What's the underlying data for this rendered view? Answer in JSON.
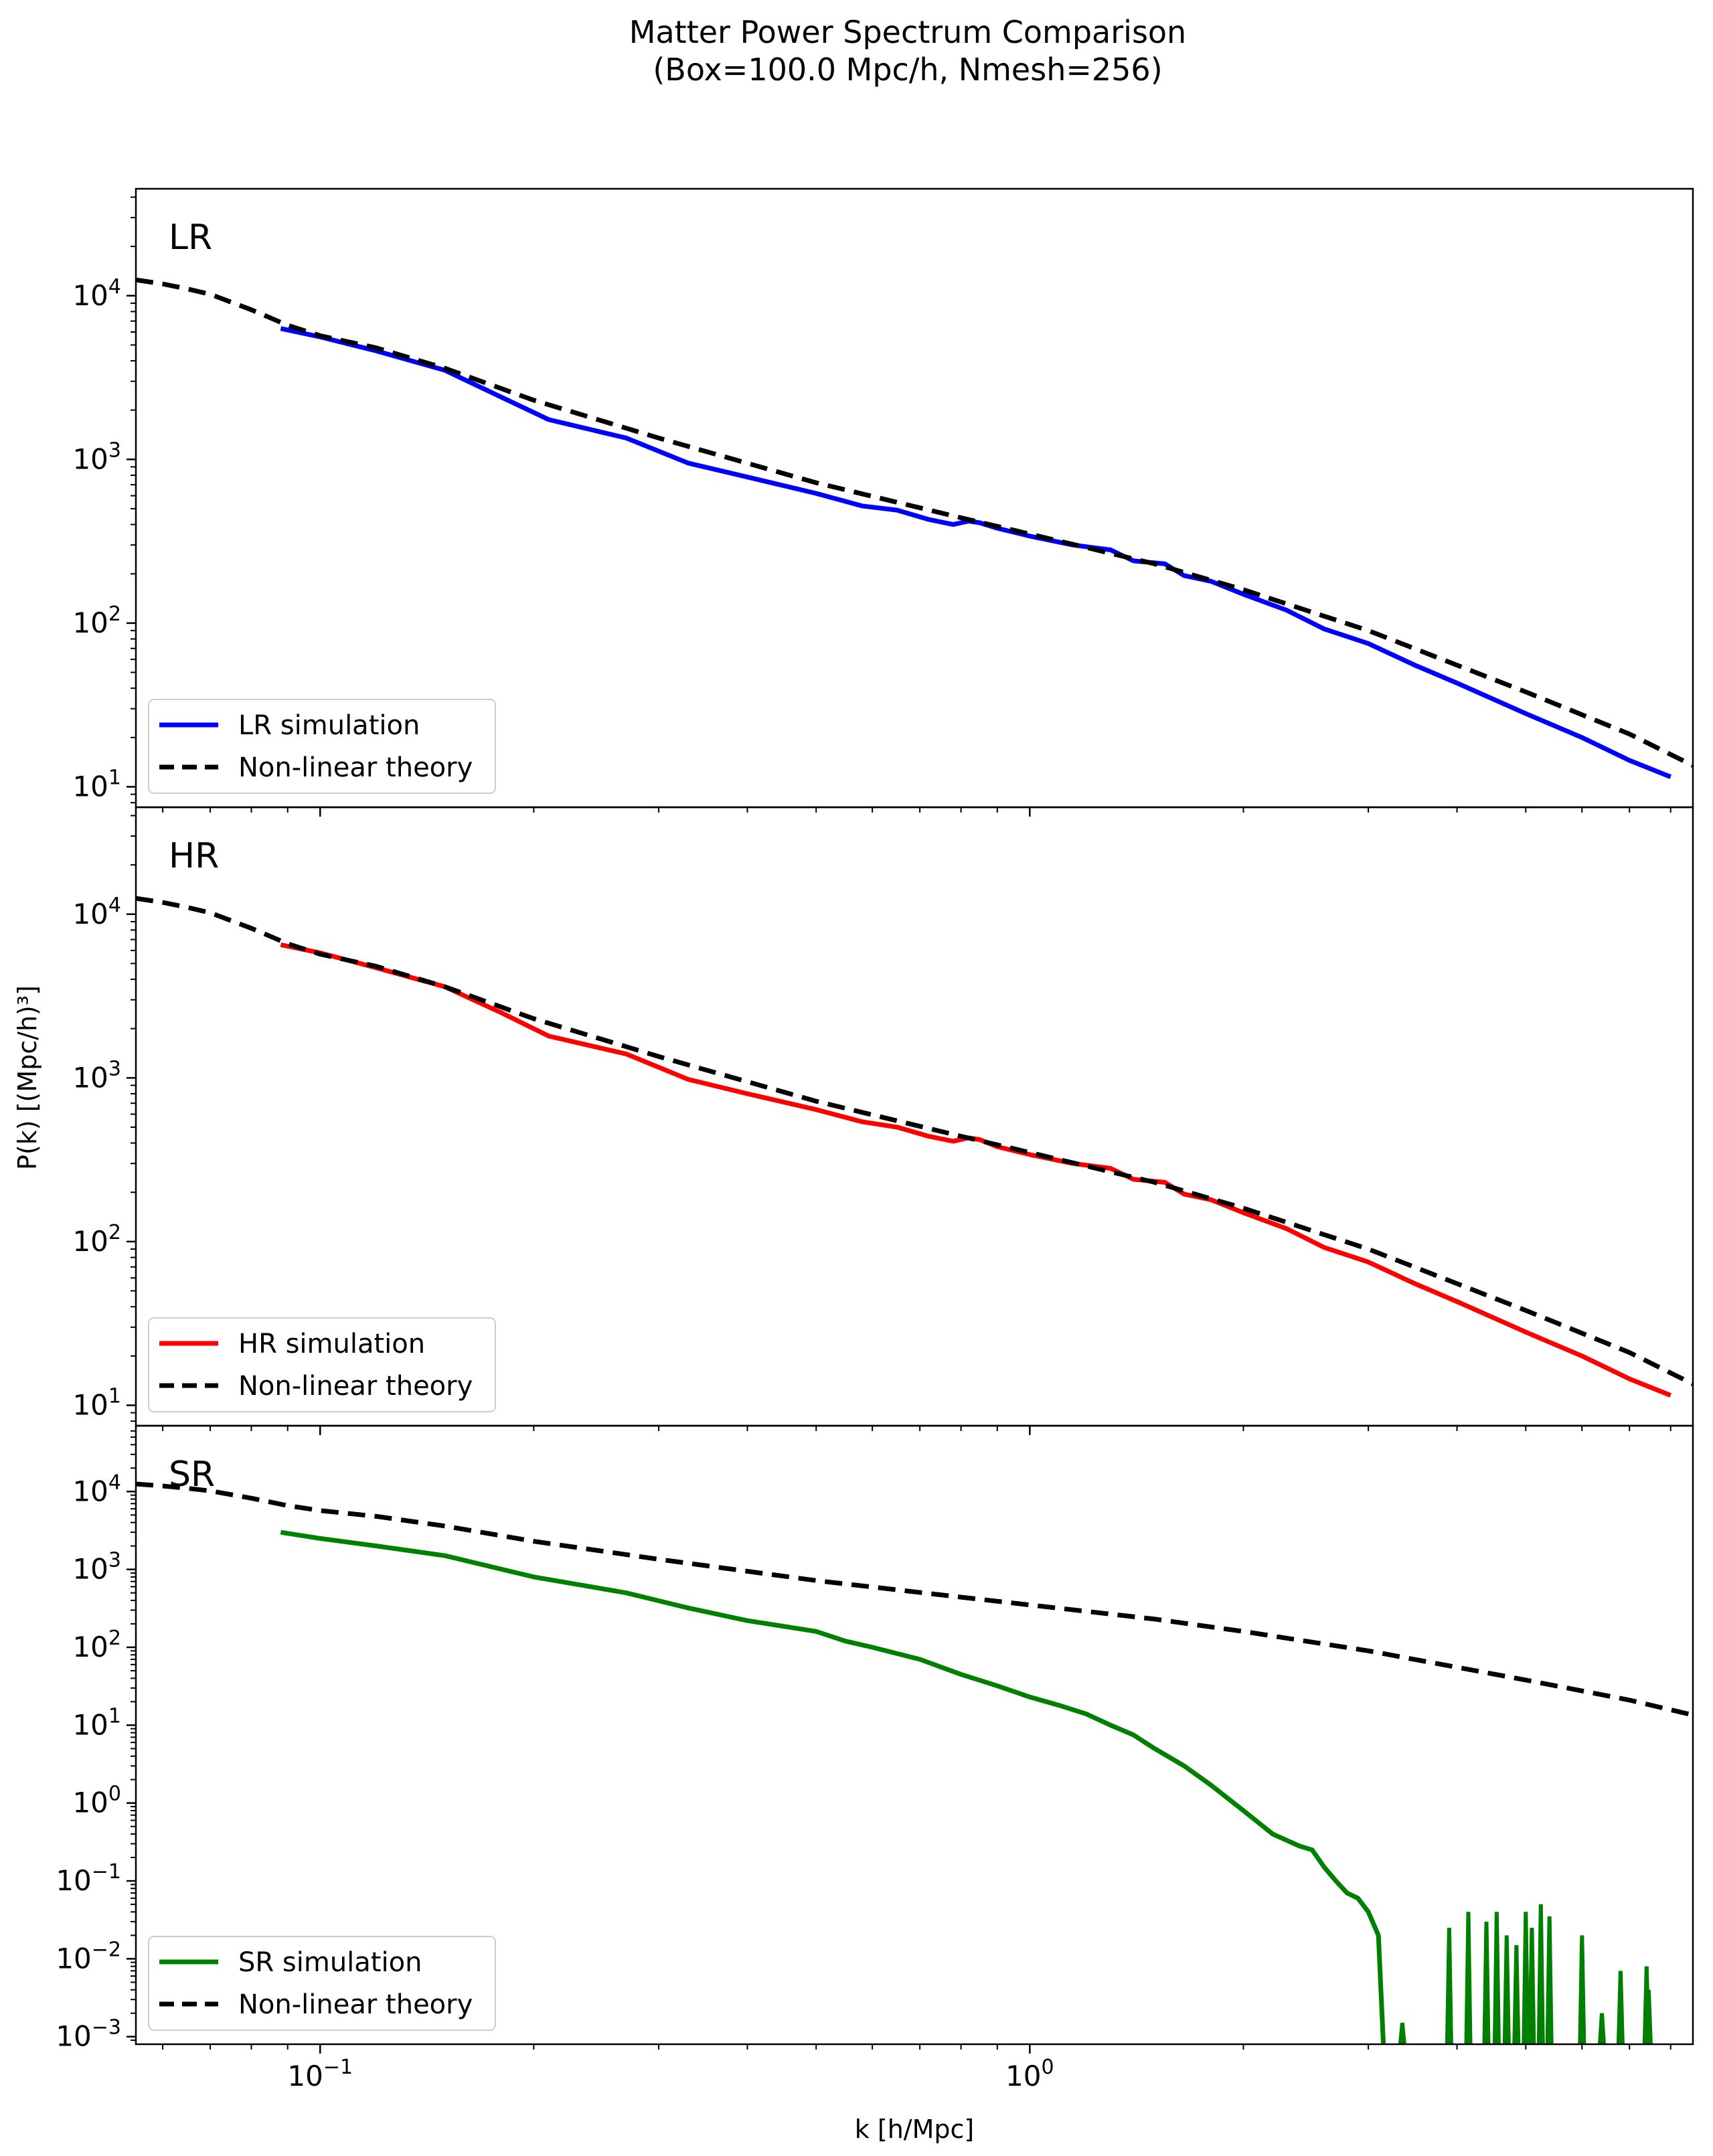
{
  "figure": {
    "title_line1": "Matter Power Spectrum Comparison",
    "title_line2": "(Box=100.0 Mpc/h, Nmesh=256)",
    "xlabel": "k [h/Mpc]",
    "ylabel": "P(k) [(Mpc/h)³]"
  },
  "chart_data": [
    {
      "type": "line",
      "panel": "LR",
      "x_scale": "log",
      "y_scale": "log",
      "xlim": [
        0.055,
        8.6
      ],
      "ylim": [
        7.5,
        45000
      ],
      "x_ticks": [
        {
          "value": 0.1,
          "base": "10",
          "exp": "−1"
        },
        {
          "value": 1,
          "base": "10",
          "exp": "0"
        }
      ],
      "y_ticks": [
        {
          "value": 10,
          "base": "10",
          "exp": "1"
        },
        {
          "value": 100,
          "base": "10",
          "exp": "2"
        },
        {
          "value": 1000,
          "base": "10",
          "exp": "3"
        },
        {
          "value": 10000,
          "base": "10",
          "exp": "4"
        }
      ],
      "legend_position": "lower-left",
      "series": [
        {
          "name": "LR simulation",
          "color": "#0000ff",
          "style": "solid",
          "x": [
            0.088,
            0.1,
            0.12,
            0.15,
            0.18,
            0.21,
            0.27,
            0.33,
            0.4,
            0.5,
            0.58,
            0.65,
            0.72,
            0.78,
            0.82,
            0.85,
            0.9,
            1.0,
            1.15,
            1.3,
            1.4,
            1.55,
            1.65,
            1.8,
            2.0,
            2.3,
            2.6,
            3.0,
            3.5,
            4.0,
            5.0,
            6.0,
            7.0,
            8.0
          ],
          "y": [
            6300,
            5600,
            4600,
            3500,
            2400,
            1750,
            1350,
            950,
            780,
            620,
            520,
            490,
            430,
            400,
            420,
            410,
            380,
            340,
            300,
            280,
            240,
            230,
            195,
            180,
            150,
            120,
            92,
            75,
            55,
            43,
            28,
            20,
            14.5,
            11.5
          ]
        },
        {
          "name": "Non-linear theory",
          "color": "#000000",
          "style": "dashed",
          "x": [
            0.055,
            0.06,
            0.065,
            0.07,
            0.08,
            0.09,
            0.1,
            0.12,
            0.15,
            0.2,
            0.3,
            0.5,
            0.8,
            1.0,
            1.5,
            2.0,
            3.0,
            5.0,
            7.0,
            8.6
          ],
          "y": [
            12500,
            11800,
            11000,
            10200,
            8200,
            6600,
            5700,
            4800,
            3600,
            2300,
            1350,
            720,
            440,
            350,
            230,
            160,
            90,
            38,
            21,
            13.5
          ]
        }
      ]
    },
    {
      "type": "line",
      "panel": "HR",
      "x_scale": "log",
      "y_scale": "log",
      "xlim": [
        0.055,
        8.6
      ],
      "ylim": [
        7.5,
        45000
      ],
      "x_ticks": [
        {
          "value": 0.1,
          "base": "10",
          "exp": "−1"
        },
        {
          "value": 1,
          "base": "10",
          "exp": "0"
        }
      ],
      "y_ticks": [
        {
          "value": 10,
          "base": "10",
          "exp": "1"
        },
        {
          "value": 100,
          "base": "10",
          "exp": "2"
        },
        {
          "value": 1000,
          "base": "10",
          "exp": "3"
        },
        {
          "value": 10000,
          "base": "10",
          "exp": "4"
        }
      ],
      "legend_position": "lower-left",
      "series": [
        {
          "name": "HR simulation",
          "color": "#ff0000",
          "style": "solid",
          "x": [
            0.088,
            0.1,
            0.12,
            0.15,
            0.18,
            0.21,
            0.27,
            0.33,
            0.4,
            0.5,
            0.58,
            0.65,
            0.72,
            0.78,
            0.82,
            0.85,
            0.9,
            1.0,
            1.15,
            1.3,
            1.4,
            1.55,
            1.65,
            1.8,
            2.0,
            2.3,
            2.6,
            3.0,
            3.5,
            4.0,
            5.0,
            6.0,
            7.0,
            8.0
          ],
          "y": [
            6500,
            5800,
            4700,
            3600,
            2500,
            1800,
            1400,
            980,
            800,
            640,
            540,
            500,
            440,
            410,
            430,
            420,
            380,
            340,
            300,
            280,
            240,
            230,
            195,
            180,
            150,
            120,
            92,
            75,
            55,
            43,
            28,
            20,
            14.5,
            11.5
          ]
        },
        {
          "name": "Non-linear theory",
          "color": "#000000",
          "style": "dashed",
          "x": [
            0.055,
            0.06,
            0.065,
            0.07,
            0.08,
            0.09,
            0.1,
            0.12,
            0.15,
            0.2,
            0.3,
            0.5,
            0.8,
            1.0,
            1.5,
            2.0,
            3.0,
            5.0,
            7.0,
            8.6
          ],
          "y": [
            12500,
            11800,
            11000,
            10200,
            8200,
            6600,
            5700,
            4800,
            3600,
            2300,
            1350,
            720,
            440,
            350,
            230,
            160,
            90,
            38,
            21,
            13.5
          ]
        }
      ]
    },
    {
      "type": "line",
      "panel": "SR",
      "x_scale": "log",
      "y_scale": "log",
      "xlim": [
        0.055,
        8.6
      ],
      "ylim": [
        0.0008,
        70000
      ],
      "x_ticks": [
        {
          "value": 0.1,
          "base": "10",
          "exp": "−1"
        },
        {
          "value": 1,
          "base": "10",
          "exp": "0"
        }
      ],
      "y_ticks": [
        {
          "value": 0.001,
          "base": "10",
          "exp": "−3"
        },
        {
          "value": 0.01,
          "base": "10",
          "exp": "−2"
        },
        {
          "value": 0.1,
          "base": "10",
          "exp": "−1"
        },
        {
          "value": 1,
          "base": "10",
          "exp": "0"
        },
        {
          "value": 10,
          "base": "10",
          "exp": "1"
        },
        {
          "value": 100,
          "base": "10",
          "exp": "2"
        },
        {
          "value": 1000,
          "base": "10",
          "exp": "3"
        },
        {
          "value": 10000,
          "base": "10",
          "exp": "4"
        }
      ],
      "legend_position": "lower-left",
      "series": [
        {
          "name": "SR simulation",
          "color": "#008000",
          "style": "solid",
          "x": [
            0.088,
            0.1,
            0.12,
            0.15,
            0.2,
            0.27,
            0.33,
            0.4,
            0.5,
            0.55,
            0.6,
            0.7,
            0.8,
            0.9,
            1.0,
            1.1,
            1.2,
            1.3,
            1.4,
            1.5,
            1.65,
            1.8,
            2.0,
            2.2,
            2.4,
            2.5,
            2.6,
            2.7,
            2.8,
            2.9,
            3.0,
            3.1,
            3.15
          ],
          "y": [
            3000,
            2500,
            2000,
            1500,
            800,
            500,
            320,
            220,
            160,
            120,
            100,
            70,
            45,
            32,
            23,
            18,
            14,
            10,
            7.5,
            5,
            3,
            1.7,
            0.8,
            0.4,
            0.28,
            0.25,
            0.15,
            0.1,
            0.07,
            0.06,
            0.04,
            0.02,
            0.0008
          ]
        },
        {
          "name": "Non-linear theory",
          "color": "#000000",
          "style": "dashed",
          "x": [
            0.055,
            0.06,
            0.065,
            0.07,
            0.08,
            0.09,
            0.1,
            0.12,
            0.15,
            0.2,
            0.3,
            0.5,
            0.8,
            1.0,
            1.5,
            2.0,
            3.0,
            5.0,
            7.0,
            8.6
          ],
          "y": [
            12500,
            11800,
            11000,
            10200,
            8200,
            6600,
            5700,
            4800,
            3600,
            2300,
            1350,
            720,
            440,
            350,
            230,
            160,
            90,
            38,
            21,
            13.5
          ]
        }
      ],
      "noise_spikes": {
        "x": [
          3.35,
          3.9,
          4.15,
          4.4,
          4.55,
          4.7,
          4.85,
          5.0,
          5.1,
          5.25,
          5.4,
          6.0,
          6.4,
          6.8,
          7.4,
          7.45
        ],
        "y": [
          0.0015,
          0.025,
          0.04,
          0.03,
          0.04,
          0.02,
          0.015,
          0.04,
          0.025,
          0.05,
          0.035,
          0.02,
          0.002,
          0.007,
          0.008,
          0.004
        ]
      }
    }
  ],
  "panels": [
    {
      "label": "LR",
      "legend": [
        {
          "label": "LR simulation",
          "color": "#0000ff",
          "style": "solid"
        },
        {
          "label": "Non-linear theory",
          "color": "#000000",
          "style": "dashed"
        }
      ]
    },
    {
      "label": "HR",
      "legend": [
        {
          "label": "HR simulation",
          "color": "#ff0000",
          "style": "solid"
        },
        {
          "label": "Non-linear theory",
          "color": "#000000",
          "style": "dashed"
        }
      ]
    },
    {
      "label": "SR",
      "legend": [
        {
          "label": "SR simulation",
          "color": "#008000",
          "style": "solid"
        },
        {
          "label": "Non-linear theory",
          "color": "#000000",
          "style": "dashed"
        }
      ]
    }
  ]
}
